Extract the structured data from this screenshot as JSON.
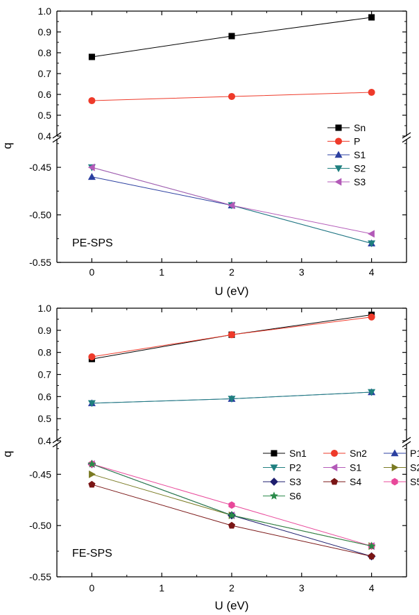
{
  "chart_data": [
    {
      "type": "line",
      "panel_label": "PE-SPS",
      "xlabel": "U (eV)",
      "ylabel": "q",
      "xlim": [
        -0.5,
        4.5
      ],
      "x_ticks": [
        "0",
        "1",
        "2",
        "3",
        "4"
      ],
      "upper_ylim": [
        0.4,
        1.0
      ],
      "upper_yticks": [
        "0.4",
        "0.5",
        "0.6",
        "0.7",
        "0.8",
        "0.9",
        "1.0"
      ],
      "lower_ylim": [
        -0.55,
        -0.42
      ],
      "lower_yticks": [
        "-0.45",
        "-0.50",
        "-0.55"
      ],
      "axis_break": true,
      "grid": false,
      "legend_position": "right, inside",
      "x": [
        0,
        2,
        4
      ],
      "series": [
        {
          "name": "Sn",
          "values": [
            0.78,
            0.88,
            0.97
          ],
          "color": "#000000",
          "marker": "square"
        },
        {
          "name": "P",
          "values": [
            0.57,
            0.59,
            0.61
          ],
          "color": "#ee3a2a",
          "marker": "circle"
        },
        {
          "name": "S1",
          "values": [
            -0.46,
            -0.49,
            -0.53
          ],
          "color": "#2b3fa0",
          "marker": "triangle-up"
        },
        {
          "name": "S2",
          "values": [
            -0.45,
            -0.49,
            -0.53
          ],
          "color": "#1f7f7f",
          "marker": "triangle-down"
        },
        {
          "name": "S3",
          "values": [
            -0.45,
            -0.49,
            -0.52
          ],
          "color": "#b35ab8",
          "marker": "triangle-left"
        }
      ]
    },
    {
      "type": "line",
      "panel_label": "FE-SPS",
      "xlabel": "U (eV)",
      "ylabel": "q",
      "xlim": [
        -0.5,
        4.5
      ],
      "x_ticks": [
        "0",
        "1",
        "2",
        "3",
        "4"
      ],
      "upper_ylim": [
        0.4,
        1.0
      ],
      "upper_yticks": [
        "0.4",
        "0.5",
        "0.6",
        "0.7",
        "0.8",
        "0.9",
        "1.0"
      ],
      "lower_ylim": [
        -0.55,
        -0.42
      ],
      "lower_yticks": [
        "-0.45",
        "-0.50",
        "-0.55"
      ],
      "axis_break": true,
      "grid": false,
      "legend_position": "right, inside, 3 columns",
      "x": [
        0,
        2,
        4
      ],
      "series": [
        {
          "name": "Sn1",
          "values": [
            0.77,
            0.88,
            0.97
          ],
          "color": "#000000",
          "marker": "square"
        },
        {
          "name": "Sn2",
          "values": [
            0.78,
            0.88,
            0.96
          ],
          "color": "#ee3a2a",
          "marker": "circle"
        },
        {
          "name": "P1",
          "values": [
            0.57,
            0.59,
            0.62
          ],
          "color": "#2b3fa0",
          "marker": "triangle-up"
        },
        {
          "name": "P2",
          "values": [
            0.57,
            0.59,
            0.62
          ],
          "color": "#1f7f7f",
          "marker": "triangle-down"
        },
        {
          "name": "S1",
          "values": [
            -0.44,
            -0.49,
            -0.52
          ],
          "color": "#b35ab8",
          "marker": "triangle-left"
        },
        {
          "name": "S2",
          "values": [
            -0.45,
            -0.49,
            -0.52
          ],
          "color": "#7a7a22",
          "marker": "triangle-right"
        },
        {
          "name": "S3",
          "values": [
            -0.44,
            -0.49,
            -0.53
          ],
          "color": "#1e1e6e",
          "marker": "diamond"
        },
        {
          "name": "S4",
          "values": [
            -0.46,
            -0.5,
            -0.53
          ],
          "color": "#7a1515",
          "marker": "pentagon"
        },
        {
          "name": "S5",
          "values": [
            -0.44,
            -0.48,
            -0.52
          ],
          "color": "#e8489a",
          "marker": "hexagon"
        },
        {
          "name": "S6",
          "values": [
            -0.44,
            -0.49,
            -0.52
          ],
          "color": "#2a8a4a",
          "marker": "star"
        }
      ]
    }
  ]
}
